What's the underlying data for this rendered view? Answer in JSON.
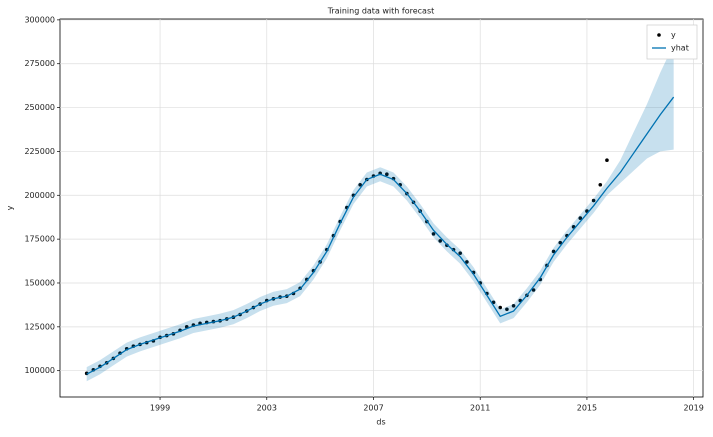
{
  "chart_data": {
    "type": "line",
    "title": "Training data with forecast",
    "x_label": "ds",
    "y_label": "y",
    "xlim": [
      1995.25,
      2019.35
    ],
    "xticks": [
      1999,
      2003,
      2007,
      2011,
      2015,
      2019
    ],
    "ylim": [
      85000,
      300500
    ],
    "yticks": [
      100000,
      125000,
      150000,
      175000,
      200000,
      225000,
      250000,
      275000,
      300000
    ],
    "grid": true,
    "legend": "upper right",
    "series": [
      {
        "name": "y",
        "color": "#000000",
        "marker": true,
        "x": [
          1996.25,
          1996.5,
          1996.75,
          1997,
          1997.25,
          1997.5,
          1997.75,
          1998,
          1998.25,
          1998.5,
          1998.75,
          1999,
          1999.25,
          1999.5,
          1999.75,
          2000,
          2000.25,
          2000.5,
          2000.75,
          2001,
          2001.25,
          2001.5,
          2001.75,
          2002,
          2002.25,
          2002.5,
          2002.75,
          2003,
          2003.25,
          2003.5,
          2003.75,
          2004,
          2004.25,
          2004.5,
          2004.75,
          2005,
          2005.25,
          2005.5,
          2005.75,
          2006,
          2006.25,
          2006.5,
          2006.75,
          2007,
          2007.25,
          2007.5,
          2007.75,
          2008,
          2008.25,
          2008.5,
          2008.75,
          2009,
          2009.25,
          2009.5,
          2009.75,
          2010,
          2010.25,
          2010.5,
          2010.75,
          2011,
          2011.25,
          2011.5,
          2011.75,
          2012,
          2012.25,
          2012.5,
          2012.75,
          2013,
          2013.25,
          2013.5,
          2013.75,
          2014,
          2014.25,
          2014.5,
          2014.75,
          2015,
          2015.25,
          2015.5,
          2015.75
        ],
        "values": [
          98500,
          100500,
          102500,
          104500,
          107000,
          110000,
          112500,
          114000,
          115000,
          116000,
          117000,
          119000,
          120000,
          121000,
          123000,
          125000,
          126000,
          127000,
          127500,
          128000,
          128500,
          129500,
          130500,
          132000,
          134000,
          136000,
          138000,
          140000,
          141000,
          142000,
          142500,
          144000,
          147000,
          152000,
          157000,
          162000,
          169000,
          177000,
          185000,
          193000,
          200000,
          206000,
          209000,
          211000,
          212500,
          212000,
          209500,
          206000,
          201000,
          196000,
          191000,
          185000,
          178000,
          174000,
          171500,
          169000,
          167000,
          162000,
          156000,
          150000,
          144000,
          139000,
          136000,
          135000,
          137000,
          140000,
          143000,
          146000,
          152000,
          160000,
          168000,
          173000,
          177000,
          182000,
          187000,
          191000,
          197000,
          206000,
          220000
        ]
      },
      {
        "name": "yhat",
        "color": "#0072b2",
        "marker": false,
        "x": [
          1996.25,
          1996.75,
          1997.25,
          1997.75,
          1998.25,
          1998.75,
          1999.25,
          1999.75,
          2000.25,
          2000.75,
          2001.25,
          2001.75,
          2002.25,
          2002.75,
          2003.25,
          2003.75,
          2004.25,
          2004.75,
          2005.25,
          2005.75,
          2006.25,
          2006.75,
          2007.25,
          2007.75,
          2008.25,
          2008.75,
          2009.25,
          2009.75,
          2010.25,
          2010.75,
          2011.25,
          2011.75,
          2012.25,
          2012.75,
          2013.25,
          2013.75,
          2014.25,
          2014.75,
          2015.25,
          2015.75,
          2016.25,
          2016.75,
          2017.25,
          2017.75,
          2018.25
        ],
        "values": [
          98000,
          102000,
          107000,
          112000,
          115000,
          117500,
          120000,
          122500,
          125500,
          127000,
          128500,
          130500,
          134000,
          138000,
          141000,
          142500,
          146500,
          156000,
          168000,
          184000,
          199000,
          209000,
          212000,
          209000,
          201000,
          191000,
          180000,
          172000,
          165000,
          155000,
          143000,
          131000,
          134000,
          143000,
          153000,
          166000,
          176000,
          185000,
          194000,
          204000,
          213000,
          224000,
          235000,
          246000,
          256000
        ],
        "lower": [
          94000,
          98000,
          103000,
          108000,
          111000,
          113500,
          116000,
          118500,
          121500,
          123000,
          124500,
          126500,
          130000,
          134000,
          137000,
          138500,
          142500,
          152000,
          164000,
          180000,
          195000,
          205000,
          208000,
          205000,
          197000,
          187000,
          176000,
          168000,
          161000,
          151000,
          139000,
          127000,
          130000,
          139000,
          149000,
          162000,
          172000,
          181000,
          190000,
          200000,
          207000,
          214000,
          221000,
          225000,
          226000
        ],
        "upper": [
          102000,
          106000,
          111000,
          116000,
          119000,
          121500,
          124000,
          126500,
          129500,
          131000,
          132500,
          134500,
          138000,
          142000,
          145000,
          146500,
          150500,
          160000,
          172000,
          188000,
          203000,
          213000,
          216000,
          213000,
          205000,
          195000,
          184000,
          176000,
          169000,
          159000,
          147000,
          135000,
          138000,
          147000,
          157000,
          170000,
          180000,
          189000,
          198000,
          208000,
          220000,
          236000,
          252000,
          270000,
          286000
        ],
        "band_color": "#0072b2"
      }
    ]
  }
}
